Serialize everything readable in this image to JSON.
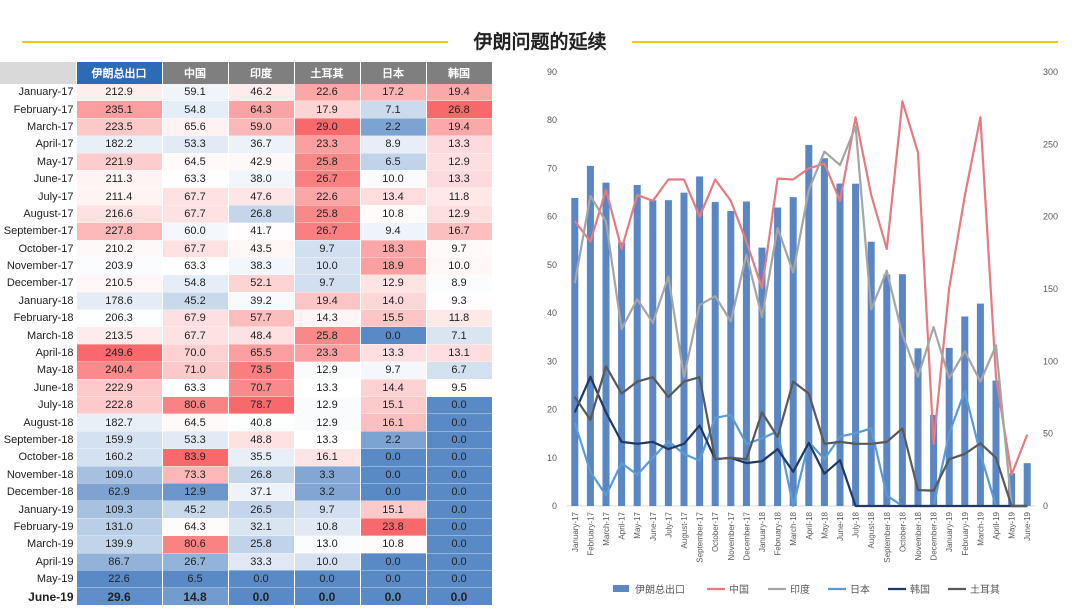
{
  "page": {
    "title": "伊朗问题的延续"
  },
  "table": {
    "columns": [
      "伊朗总出口",
      "中国",
      "印度",
      "土耳其",
      "日本",
      "韩国"
    ],
    "rows": [
      {
        "label": "January-17",
        "values": [
          212.9,
          59.1,
          46.2,
          22.6,
          17.2,
          19.4
        ]
      },
      {
        "label": "February-17",
        "values": [
          235.1,
          54.8,
          64.3,
          17.9,
          7.1,
          26.8
        ]
      },
      {
        "label": "March-17",
        "values": [
          223.5,
          65.6,
          59.0,
          29.0,
          2.2,
          19.4
        ]
      },
      {
        "label": "April-17",
        "values": [
          182.2,
          53.3,
          36.7,
          23.3,
          8.9,
          13.3
        ]
      },
      {
        "label": "May-17",
        "values": [
          221.9,
          64.5,
          42.9,
          25.8,
          6.5,
          12.9
        ]
      },
      {
        "label": "June-17",
        "values": [
          211.3,
          63.3,
          38.0,
          26.7,
          10.0,
          13.3
        ]
      },
      {
        "label": "July-17",
        "values": [
          211.4,
          67.7,
          47.6,
          22.6,
          13.4,
          11.8
        ]
      },
      {
        "label": "August-17",
        "values": [
          216.6,
          67.7,
          26.8,
          25.8,
          10.8,
          12.9
        ]
      },
      {
        "label": "September-17",
        "values": [
          227.8,
          60.0,
          41.7,
          26.7,
          9.4,
          16.7
        ]
      },
      {
        "label": "October-17",
        "values": [
          210.2,
          67.7,
          43.5,
          9.7,
          18.3,
          9.7
        ]
      },
      {
        "label": "November-17",
        "values": [
          203.9,
          63.3,
          38.3,
          10.0,
          18.9,
          10.0
        ]
      },
      {
        "label": "December-17",
        "values": [
          210.5,
          54.8,
          52.1,
          9.7,
          12.9,
          8.9
        ]
      },
      {
        "label": "January-18",
        "values": [
          178.6,
          45.2,
          39.2,
          19.4,
          14.0,
          9.3
        ]
      },
      {
        "label": "February-18",
        "values": [
          206.3,
          67.9,
          57.7,
          14.3,
          15.5,
          11.8
        ]
      },
      {
        "label": "March-18",
        "values": [
          213.5,
          67.7,
          48.4,
          25.8,
          0.0,
          7.1
        ]
      },
      {
        "label": "April-18",
        "values": [
          249.6,
          70.0,
          65.5,
          23.3,
          13.3,
          13.1
        ]
      },
      {
        "label": "May-18",
        "values": [
          240.4,
          71.0,
          73.5,
          12.9,
          9.7,
          6.7
        ]
      },
      {
        "label": "June-18",
        "values": [
          222.9,
          63.3,
          70.7,
          13.3,
          14.4,
          9.5
        ]
      },
      {
        "label": "July-18",
        "values": [
          222.8,
          80.6,
          78.7,
          12.9,
          15.1,
          0.0
        ]
      },
      {
        "label": "August-18",
        "values": [
          182.7,
          64.5,
          40.8,
          12.9,
          16.1,
          0.0
        ]
      },
      {
        "label": "September-18",
        "values": [
          159.9,
          53.3,
          48.8,
          13.3,
          2.2,
          0.0
        ]
      },
      {
        "label": "October-18",
        "values": [
          160.2,
          83.9,
          35.5,
          16.1,
          0.0,
          0.0
        ]
      },
      {
        "label": "November-18",
        "values": [
          109.0,
          73.3,
          26.8,
          3.3,
          0.0,
          0.0
        ]
      },
      {
        "label": "December-18",
        "values": [
          62.9,
          12.9,
          37.1,
          3.2,
          0.0,
          0.0
        ]
      },
      {
        "label": "January-19",
        "values": [
          109.3,
          45.2,
          26.5,
          9.7,
          15.1,
          0.0
        ]
      },
      {
        "label": "February-19",
        "values": [
          131.0,
          64.3,
          32.1,
          10.8,
          23.8,
          0.0
        ]
      },
      {
        "label": "March-19",
        "values": [
          139.9,
          80.6,
          25.8,
          13.0,
          10.8,
          0.0
        ]
      },
      {
        "label": "April-19",
        "values": [
          86.7,
          26.7,
          33.3,
          10.0,
          0.0,
          0.0
        ]
      },
      {
        "label": "May-19",
        "values": [
          22.6,
          6.5,
          0.0,
          0.0,
          0.0,
          0.0
        ]
      },
      {
        "label": "June-19",
        "values": [
          29.6,
          14.8,
          0.0,
          0.0,
          0.0,
          0.0
        ]
      }
    ]
  },
  "colors": {
    "title_rule": "#f0c419",
    "header_highlight": "#2e6bb6",
    "header": "#7f7f7f",
    "heat_high": "#f8696b",
    "heat_mid": "#ffffff",
    "heat_low": "#5a8ac6",
    "iran_bar": "#5b86c4",
    "china_line": "#e57b80",
    "india_line": "#a5a5a5",
    "japan_line": "#5b9bd5",
    "korea_line": "#1f3864",
    "turkey_line": "#595959"
  },
  "chart_data": {
    "type": "bar",
    "categories": [
      "January-17",
      "February-17",
      "March-17",
      "April-17",
      "May-17",
      "June-17",
      "July-17",
      "August-17",
      "September-17",
      "October-17",
      "November-17",
      "December-17",
      "January-18",
      "February-18",
      "March-18",
      "April-18",
      "May-18",
      "June-18",
      "July-18",
      "August-18",
      "September-18",
      "October-18",
      "November-18",
      "December-18",
      "January-19",
      "February-19",
      "March-19",
      "April-19",
      "May-19",
      "June-19"
    ],
    "y_left_ticks": [
      0,
      10,
      20,
      30,
      40,
      50,
      60,
      70,
      80,
      90
    ],
    "y_right_ticks": [
      0,
      50,
      100,
      150,
      200,
      250,
      300
    ],
    "ylim_left": [
      0,
      90
    ],
    "ylim_right": [
      0,
      300
    ],
    "grid": false,
    "legend_position": "bottom",
    "series": [
      {
        "name": "伊朗总出口",
        "type": "bar",
        "axis": "right",
        "values": [
          212.9,
          235.1,
          223.5,
          182.2,
          221.9,
          211.3,
          211.4,
          216.6,
          227.8,
          210.2,
          203.9,
          210.5,
          178.6,
          206.3,
          213.5,
          249.6,
          240.4,
          222.9,
          222.8,
          182.7,
          159.9,
          160.2,
          109.0,
          62.9,
          109.3,
          131.0,
          139.9,
          86.7,
          22.6,
          29.6
        ]
      },
      {
        "name": "中国",
        "type": "line",
        "axis": "left",
        "values": [
          59.1,
          54.8,
          65.6,
          53.3,
          64.5,
          63.3,
          67.7,
          67.7,
          60.0,
          67.7,
          63.3,
          54.8,
          45.2,
          67.9,
          67.7,
          70.0,
          71.0,
          63.3,
          80.6,
          64.5,
          53.3,
          83.9,
          73.3,
          12.9,
          45.2,
          64.3,
          80.6,
          26.7,
          6.5,
          14.8
        ]
      },
      {
        "name": "印度",
        "type": "line",
        "axis": "left",
        "values": [
          46.2,
          64.3,
          59.0,
          36.7,
          42.9,
          38.0,
          47.6,
          26.8,
          41.7,
          43.5,
          38.3,
          52.1,
          39.2,
          57.7,
          48.4,
          65.5,
          73.5,
          70.7,
          78.7,
          40.8,
          48.8,
          35.5,
          26.8,
          37.1,
          26.5,
          32.1,
          25.8,
          33.3,
          0.0,
          0.0
        ]
      },
      {
        "name": "日本",
        "type": "line",
        "axis": "left",
        "values": [
          17.2,
          7.1,
          2.2,
          8.9,
          6.5,
          10.0,
          13.4,
          10.8,
          9.4,
          18.3,
          18.9,
          12.9,
          14.0,
          15.5,
          0.0,
          13.3,
          9.7,
          14.4,
          15.1,
          16.1,
          2.2,
          0.0,
          0.0,
          0.0,
          15.1,
          23.8,
          10.8,
          0.0,
          0.0,
          0.0
        ]
      },
      {
        "name": "韩国",
        "type": "line",
        "axis": "left",
        "values": [
          19.4,
          26.8,
          19.4,
          13.3,
          12.9,
          13.3,
          11.8,
          12.9,
          16.7,
          9.7,
          10.0,
          8.9,
          9.3,
          11.8,
          7.1,
          13.1,
          6.7,
          9.5,
          0.0,
          0.0,
          0.0,
          0.0,
          0.0,
          0.0,
          0.0,
          0.0,
          0.0,
          0.0,
          0.0,
          0.0
        ]
      },
      {
        "name": "土耳其",
        "type": "line",
        "axis": "left",
        "values": [
          22.6,
          17.9,
          29.0,
          23.3,
          25.8,
          26.7,
          22.6,
          25.8,
          26.7,
          9.7,
          10.0,
          9.7,
          19.4,
          14.3,
          25.8,
          23.3,
          12.9,
          13.3,
          12.9,
          12.9,
          13.3,
          16.1,
          3.3,
          3.2,
          9.7,
          10.8,
          13.0,
          10.0,
          0.0,
          0.0
        ]
      }
    ]
  }
}
